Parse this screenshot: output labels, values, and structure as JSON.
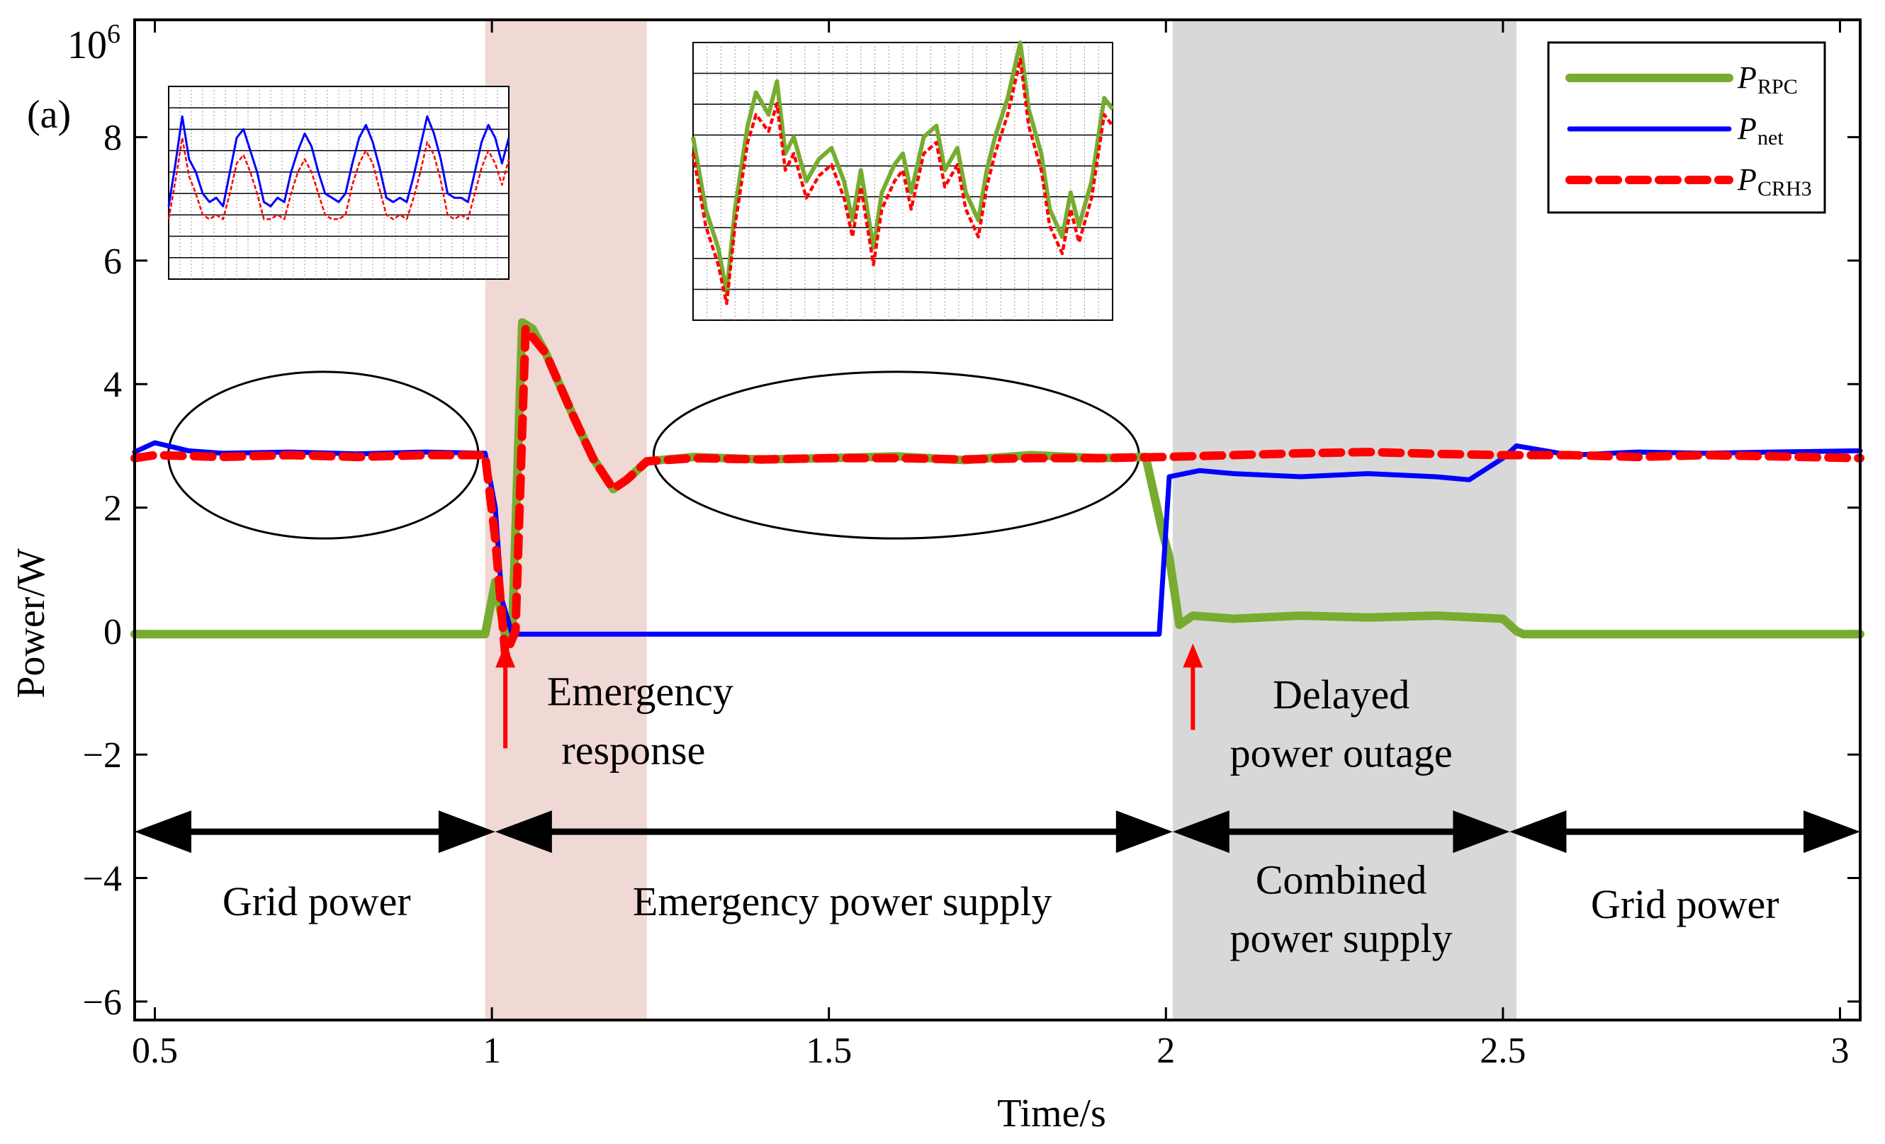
{
  "chart_data": {
    "type": "line",
    "panel_label": "(a)",
    "xlabel": "Time/s",
    "ylabel": "Power/W",
    "y_exponent_base": "10",
    "y_exponent_power": "6",
    "xlim": [
      0.47,
      3.03
    ],
    "ylim": [
      -6.3,
      9.9
    ],
    "x_ticks": [
      {
        "value": 0.5,
        "label": "0.5"
      },
      {
        "value": 1,
        "label": "1"
      },
      {
        "value": 1.5,
        "label": "1.5"
      },
      {
        "value": 2,
        "label": "2"
      },
      {
        "value": 2.5,
        "label": "2.5"
      },
      {
        "value": 3,
        "label": "3"
      }
    ],
    "y_ticks": [
      {
        "value": -6,
        "label": "−6"
      },
      {
        "value": -4,
        "label": "−4"
      },
      {
        "value": -2,
        "label": "−2"
      },
      {
        "value": 0,
        "label": "0"
      },
      {
        "value": 2,
        "label": "2"
      },
      {
        "value": 4,
        "label": "4"
      },
      {
        "value": 6,
        "label": "6"
      },
      {
        "value": 8,
        "label": "8"
      }
    ],
    "shaded_regions": [
      {
        "x0": 0.99,
        "x1": 1.23,
        "color": "#f0d8d4"
      },
      {
        "x0": 2.01,
        "x1": 2.52,
        "color": "#d8d8d8"
      }
    ],
    "legend": {
      "position": "top-right",
      "entries": [
        {
          "symbol": "P",
          "subscript": "RPC",
          "color": "#77ac30",
          "style": "solid-thick"
        },
        {
          "symbol": "P",
          "subscript": "net",
          "color": "#0000ff",
          "style": "solid"
        },
        {
          "symbol": "P",
          "subscript": "CRH3",
          "color": "#ff0000",
          "style": "dashed"
        }
      ]
    },
    "series": [
      {
        "name": "P_RPC",
        "color": "#77ac30",
        "x": [
          0.47,
          0.99,
          1.005,
          1.02,
          1.03,
          1.045,
          1.06,
          1.08,
          1.1,
          1.12,
          1.15,
          1.18,
          1.2,
          1.23,
          1.3,
          1.4,
          1.5,
          1.6,
          1.7,
          1.8,
          1.9,
          1.97,
          1.995,
          2.005,
          2.02,
          2.04,
          2.1,
          2.2,
          2.3,
          2.4,
          2.5,
          2.52,
          2.53,
          3.03
        ],
        "y": [
          -0.05,
          -0.05,
          0.8,
          -0.1,
          -0.05,
          5.0,
          4.9,
          4.5,
          4.0,
          3.5,
          2.8,
          2.3,
          2.45,
          2.75,
          2.82,
          2.78,
          2.8,
          2.83,
          2.77,
          2.85,
          2.8,
          2.82,
          1.6,
          1.2,
          0.1,
          0.25,
          0.2,
          0.25,
          0.22,
          0.25,
          0.2,
          0.0,
          -0.05,
          -0.05
        ]
      },
      {
        "name": "P_net",
        "color": "#0000ff",
        "x": [
          0.47,
          0.5,
          0.55,
          0.6,
          0.7,
          0.8,
          0.9,
          0.99,
          1.005,
          1.015,
          1.03,
          1.5,
          1.99,
          2.005,
          2.05,
          2.1,
          2.2,
          2.3,
          2.4,
          2.45,
          2.5,
          2.52,
          2.6,
          2.7,
          2.8,
          2.9,
          3.03
        ],
        "y": [
          2.9,
          3.05,
          2.92,
          2.88,
          2.9,
          2.87,
          2.9,
          2.88,
          2.0,
          0.5,
          -0.05,
          -0.05,
          -0.05,
          2.5,
          2.6,
          2.55,
          2.5,
          2.55,
          2.5,
          2.45,
          2.8,
          3.0,
          2.85,
          2.9,
          2.88,
          2.9,
          2.92
        ]
      },
      {
        "name": "P_CRH3",
        "color": "#ff0000",
        "x": [
          0.47,
          0.5,
          0.6,
          0.7,
          0.8,
          0.9,
          0.99,
          1.005,
          1.02,
          1.035,
          1.05,
          1.08,
          1.1,
          1.12,
          1.15,
          1.18,
          1.2,
          1.23,
          1.3,
          1.4,
          1.5,
          1.6,
          1.7,
          1.8,
          1.9,
          2.0,
          2.1,
          2.2,
          2.3,
          2.4,
          2.5,
          2.6,
          2.7,
          2.8,
          2.9,
          3.03
        ],
        "y": [
          2.8,
          2.85,
          2.82,
          2.85,
          2.82,
          2.85,
          2.85,
          1.5,
          -0.4,
          0.0,
          4.9,
          4.5,
          4.0,
          3.5,
          2.8,
          2.3,
          2.45,
          2.75,
          2.8,
          2.78,
          2.8,
          2.8,
          2.78,
          2.8,
          2.8,
          2.82,
          2.85,
          2.88,
          2.9,
          2.87,
          2.85,
          2.85,
          2.82,
          2.85,
          2.83,
          2.8
        ]
      }
    ],
    "inset_left": {
      "x_range": [
        0.0,
        1.0
      ],
      "y_range": [
        4.5,
        9.0
      ],
      "series": [
        {
          "name": "P_net",
          "color": "#0000ff",
          "x": [
            0.0,
            0.02,
            0.04,
            0.06,
            0.08,
            0.1,
            0.12,
            0.14,
            0.16,
            0.18,
            0.2,
            0.22,
            0.24,
            0.26,
            0.28,
            0.3,
            0.32,
            0.34,
            0.36,
            0.38,
            0.4,
            0.42,
            0.44,
            0.46,
            0.48,
            0.5,
            0.52,
            0.54,
            0.56,
            0.58,
            0.6,
            0.62,
            0.64,
            0.66,
            0.68,
            0.7,
            0.72,
            0.74,
            0.76,
            0.78,
            0.8,
            0.82,
            0.84,
            0.86,
            0.88,
            0.9,
            0.92,
            0.94,
            0.96,
            0.98,
            1.0
          ],
          "y": [
            6.2,
            7.2,
            8.3,
            7.3,
            7.0,
            6.5,
            6.3,
            6.4,
            6.2,
            7.0,
            7.8,
            8.0,
            7.5,
            7.0,
            6.3,
            6.2,
            6.4,
            6.3,
            7.0,
            7.5,
            7.9,
            7.6,
            7.0,
            6.5,
            6.4,
            6.3,
            6.5,
            7.2,
            7.8,
            8.1,
            7.7,
            7.1,
            6.4,
            6.3,
            6.4,
            6.3,
            6.9,
            7.6,
            8.3,
            7.9,
            7.3,
            6.5,
            6.4,
            6.4,
            6.3,
            7.0,
            7.7,
            8.1,
            7.8,
            7.2,
            7.8
          ]
        },
        {
          "name": "P_CRH3",
          "color": "#ff0000",
          "x": [
            0.0,
            0.02,
            0.04,
            0.06,
            0.08,
            0.1,
            0.12,
            0.14,
            0.16,
            0.18,
            0.2,
            0.22,
            0.24,
            0.26,
            0.28,
            0.3,
            0.32,
            0.34,
            0.36,
            0.38,
            0.4,
            0.42,
            0.44,
            0.46,
            0.48,
            0.5,
            0.52,
            0.54,
            0.56,
            0.58,
            0.6,
            0.62,
            0.64,
            0.66,
            0.68,
            0.7,
            0.72,
            0.74,
            0.76,
            0.78,
            0.8,
            0.82,
            0.84,
            0.86,
            0.88,
            0.9,
            0.92,
            0.94,
            0.96,
            0.98,
            1.0
          ],
          "y": [
            5.9,
            6.8,
            7.8,
            6.9,
            6.5,
            6.0,
            5.9,
            6.0,
            5.9,
            6.5,
            7.2,
            7.4,
            7.0,
            6.5,
            5.9,
            5.9,
            6.0,
            5.9,
            6.5,
            7.0,
            7.3,
            7.0,
            6.5,
            6.0,
            5.9,
            5.9,
            6.0,
            6.7,
            7.2,
            7.5,
            7.2,
            6.6,
            6.0,
            5.9,
            6.0,
            5.9,
            6.4,
            7.0,
            7.7,
            7.4,
            6.8,
            6.0,
            5.9,
            6.0,
            5.9,
            6.5,
            7.1,
            7.5,
            7.2,
            6.7,
            7.3
          ]
        }
      ]
    },
    "inset_mid": {
      "x_range": [
        0.0,
        1.0
      ],
      "y_range": [
        4.5,
        9.5
      ],
      "series": [
        {
          "name": "P_RPC",
          "color": "#77ac30",
          "x": [
            0.0,
            0.03,
            0.06,
            0.08,
            0.1,
            0.13,
            0.15,
            0.18,
            0.2,
            0.22,
            0.24,
            0.27,
            0.3,
            0.33,
            0.36,
            0.38,
            0.4,
            0.43,
            0.45,
            0.48,
            0.5,
            0.52,
            0.55,
            0.58,
            0.6,
            0.63,
            0.65,
            0.68,
            0.7,
            0.72,
            0.75,
            0.78,
            0.8,
            0.83,
            0.85,
            0.88,
            0.9,
            0.92,
            0.95,
            0.98,
            1.0
          ],
          "y": [
            7.8,
            6.5,
            5.8,
            5.0,
            6.5,
            8.0,
            8.6,
            8.2,
            8.8,
            7.5,
            7.8,
            7.0,
            7.4,
            7.6,
            7.0,
            6.3,
            7.2,
            5.8,
            6.8,
            7.3,
            7.5,
            6.8,
            7.8,
            8.0,
            7.2,
            7.6,
            6.8,
            6.3,
            7.2,
            7.8,
            8.5,
            9.5,
            8.3,
            7.5,
            6.5,
            6.0,
            6.8,
            6.2,
            7.0,
            8.5,
            8.3
          ]
        },
        {
          "name": "P_CRH3",
          "color": "#ff0000",
          "x": [
            0.0,
            0.03,
            0.06,
            0.08,
            0.1,
            0.13,
            0.15,
            0.18,
            0.2,
            0.22,
            0.24,
            0.27,
            0.3,
            0.33,
            0.36,
            0.38,
            0.4,
            0.43,
            0.45,
            0.48,
            0.5,
            0.52,
            0.55,
            0.58,
            0.6,
            0.63,
            0.65,
            0.68,
            0.7,
            0.72,
            0.75,
            0.78,
            0.8,
            0.83,
            0.85,
            0.88,
            0.9,
            0.92,
            0.95,
            0.98,
            1.0
          ],
          "y": [
            7.5,
            6.2,
            5.5,
            4.8,
            6.2,
            7.7,
            8.2,
            7.9,
            8.4,
            7.2,
            7.5,
            6.7,
            7.1,
            7.3,
            6.7,
            6.0,
            6.9,
            5.5,
            6.5,
            7.0,
            7.2,
            6.5,
            7.5,
            7.7,
            6.9,
            7.3,
            6.5,
            6.0,
            6.9,
            7.5,
            8.2,
            9.2,
            8.0,
            7.2,
            6.2,
            5.7,
            6.5,
            5.9,
            6.7,
            8.2,
            8.0
          ]
        }
      ]
    },
    "ellipses": [
      {
        "cx": 0.75,
        "cy": 2.85,
        "rx": 0.23,
        "ry": 1.35
      },
      {
        "cx": 1.6,
        "cy": 2.85,
        "rx": 0.36,
        "ry": 1.35
      }
    ],
    "red_arrows": [
      {
        "x": 1.02,
        "y_from": -1.9,
        "y_to": -0.2
      },
      {
        "x": 2.04,
        "y_from": -1.6,
        "y_to": -0.2
      }
    ],
    "spans": [
      {
        "x0": 0.47,
        "x1": 1.005,
        "y": -3.25
      },
      {
        "x0": 1.005,
        "x1": 2.01,
        "y": -3.25
      },
      {
        "x0": 2.01,
        "x1": 2.51,
        "y": -3.25
      },
      {
        "x0": 2.51,
        "x1": 3.03,
        "y": -3.25
      }
    ],
    "annotations": [
      {
        "text": "Emergency",
        "x": 1.22,
        "y": -1.2
      },
      {
        "text": "response",
        "x": 1.21,
        "y": -2.15
      },
      {
        "text": "Delayed",
        "x": 2.26,
        "y": -1.25
      },
      {
        "text": "power outage",
        "x": 2.26,
        "y": -2.2
      },
      {
        "text": "Grid power",
        "x": 0.74,
        "y": -4.6
      },
      {
        "text": "Emergency power supply",
        "x": 1.52,
        "y": -4.6
      },
      {
        "text": "Combined",
        "x": 2.26,
        "y": -4.25
      },
      {
        "text": "power supply",
        "x": 2.26,
        "y": -5.2
      },
      {
        "text": "Grid power",
        "x": 2.77,
        "y": -4.65
      }
    ]
  }
}
